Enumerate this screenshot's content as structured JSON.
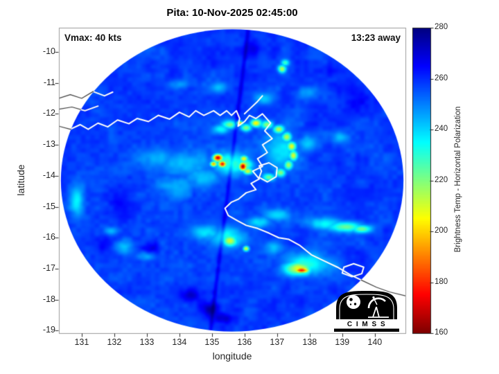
{
  "header": {
    "title": "Pita: 10-Nov-2025 02:45:00"
  },
  "annotations": {
    "vmax": "Vmax: 40 kts",
    "eta": "13:23 away"
  },
  "logo": {
    "text": "C I M S S"
  },
  "chart_data": {
    "type": "heatmap",
    "title": "Pita: 10-Nov-2025 02:45:00",
    "xlabel": "longitude",
    "ylabel": "latitude",
    "x_ticks": [
      131,
      132,
      133,
      134,
      135,
      136,
      137,
      138,
      139,
      140
    ],
    "y_ticks": [
      -10,
      -11,
      -12,
      -13,
      -14,
      -15,
      -16,
      -17,
      -18,
      -19
    ],
    "xlim": [
      130.3,
      140.94
    ],
    "ylim": [
      -19.08,
      -9.22
    ],
    "grid": false,
    "colorbar": {
      "label": "Brightness Temp - Horizontal Polarization",
      "min": 160,
      "max": 280,
      "ticks": [
        160,
        180,
        200,
        220,
        240,
        260,
        280
      ],
      "colormap": "jet_reversed"
    },
    "swath": {
      "center_lon": 135.62,
      "center_lat": -14.15,
      "radius_lon_deg": 5.26,
      "radius_lat_deg": 4.88
    },
    "background_tb": 258,
    "seam": {
      "from": [
        136.1,
        -9.4
      ],
      "to": [
        134.95,
        -19.0
      ],
      "tb_offset": 9,
      "sigma_deg": 0.06
    },
    "features": [
      [
        135.18,
        -13.42,
        168,
        0.14,
        0.11
      ],
      [
        135.32,
        -13.62,
        176,
        0.12,
        0.1
      ],
      [
        135.05,
        -13.62,
        192,
        0.1,
        0.08
      ],
      [
        135.95,
        -13.7,
        163,
        0.11,
        0.13
      ],
      [
        135.98,
        -13.45,
        205,
        0.12,
        0.1
      ],
      [
        136.1,
        -13.85,
        210,
        0.14,
        0.1
      ],
      [
        135.6,
        -13.6,
        230,
        0.55,
        0.38
      ],
      [
        136.0,
        -13.65,
        222,
        0.25,
        0.22
      ],
      [
        135.55,
        -12.35,
        222,
        0.22,
        0.13
      ],
      [
        135.85,
        -12.3,
        192,
        0.09,
        0.07
      ],
      [
        136.05,
        -12.45,
        218,
        0.16,
        0.11
      ],
      [
        135.3,
        -12.5,
        236,
        0.25,
        0.15
      ],
      [
        136.35,
        -12.3,
        205,
        0.16,
        0.12
      ],
      [
        136.7,
        -12.35,
        218,
        0.18,
        0.12
      ],
      [
        137.05,
        -12.5,
        215,
        0.16,
        0.13
      ],
      [
        137.3,
        -12.75,
        212,
        0.14,
        0.14
      ],
      [
        137.45,
        -13.05,
        208,
        0.13,
        0.15
      ],
      [
        137.5,
        -13.35,
        210,
        0.12,
        0.16
      ],
      [
        137.35,
        -13.65,
        215,
        0.13,
        0.15
      ],
      [
        137.1,
        -13.9,
        218,
        0.15,
        0.13
      ],
      [
        136.75,
        -14.05,
        222,
        0.18,
        0.12
      ],
      [
        137.1,
        -13.2,
        238,
        0.5,
        0.6
      ],
      [
        137.15,
        -10.55,
        212,
        0.12,
        0.12
      ],
      [
        137.25,
        -10.35,
        228,
        0.12,
        0.1
      ],
      [
        134.2,
        -13.6,
        243,
        0.9,
        0.35
      ],
      [
        133.3,
        -13.45,
        245,
        0.6,
        0.3
      ],
      [
        134.75,
        -14.05,
        241,
        0.45,
        0.3
      ],
      [
        133.8,
        -14.3,
        246,
        0.5,
        0.3
      ],
      [
        135.55,
        -16.1,
        212,
        0.22,
        0.18
      ],
      [
        135.5,
        -16.0,
        233,
        0.5,
        0.32
      ],
      [
        134.85,
        -15.85,
        241,
        0.5,
        0.25
      ],
      [
        136.05,
        -16.35,
        207,
        0.09,
        0.08
      ],
      [
        137.75,
        -17.05,
        176,
        0.24,
        0.09
      ],
      [
        137.65,
        -17.0,
        208,
        0.45,
        0.22
      ],
      [
        137.95,
        -16.85,
        230,
        0.7,
        0.35
      ],
      [
        139.1,
        -15.65,
        224,
        0.55,
        0.16
      ],
      [
        139.6,
        -15.72,
        218,
        0.28,
        0.13
      ],
      [
        138.45,
        -15.55,
        236,
        0.5,
        0.2
      ],
      [
        137.0,
        -15.25,
        240,
        0.4,
        0.2
      ],
      [
        136.45,
        -15.5,
        238,
        0.35,
        0.18
      ],
      [
        136.6,
        -11.5,
        243,
        0.3,
        0.2
      ],
      [
        135.2,
        -11.15,
        246,
        0.25,
        0.15
      ],
      [
        134.0,
        -11.05,
        246,
        0.3,
        0.15
      ],
      [
        137.95,
        -11.3,
        244,
        0.3,
        0.2
      ],
      [
        138.9,
        -12.75,
        241,
        0.25,
        0.2
      ],
      [
        137.95,
        -12.95,
        239,
        0.3,
        0.25
      ],
      [
        130.85,
        -14.8,
        236,
        0.22,
        0.5
      ],
      [
        132.3,
        -16.3,
        243,
        0.3,
        0.2
      ],
      [
        133.0,
        -16.6,
        245,
        0.25,
        0.15
      ],
      [
        131.9,
        -15.8,
        245,
        0.2,
        0.15
      ],
      [
        136.9,
        -16.3,
        241,
        0.3,
        0.2
      ],
      [
        134.35,
        -17.85,
        272,
        0.28,
        0.2
      ],
      [
        134.95,
        -18.3,
        274,
        0.3,
        0.2
      ],
      [
        133.15,
        -16.35,
        268,
        0.3,
        0.25
      ],
      [
        135.35,
        -18.6,
        272,
        0.3,
        0.15
      ],
      [
        132.2,
        -14.9,
        265,
        0.45,
        0.55
      ],
      [
        131.7,
        -16.2,
        265,
        0.3,
        0.3
      ],
      [
        136.3,
        -9.9,
        266,
        0.3,
        0.25
      ],
      [
        139.3,
        -11.6,
        264,
        0.4,
        0.4
      ],
      [
        138.6,
        -10.6,
        264,
        0.35,
        0.3
      ]
    ],
    "coastlines": [
      {
        "name": "mainland-top-end-gulf",
        "closed": false,
        "points": [
          [
            130.3,
            -12.4
          ],
          [
            130.65,
            -12.5
          ],
          [
            130.95,
            -12.35
          ],
          [
            131.2,
            -12.5
          ],
          [
            131.5,
            -12.3
          ],
          [
            131.8,
            -12.42
          ],
          [
            132.1,
            -12.2
          ],
          [
            132.45,
            -12.32
          ],
          [
            132.7,
            -12.15
          ],
          [
            133.05,
            -12.25
          ],
          [
            133.35,
            -12.05
          ],
          [
            133.7,
            -12.17
          ],
          [
            134.0,
            -11.95
          ],
          [
            134.3,
            -12.1
          ],
          [
            134.5,
            -11.9
          ],
          [
            134.75,
            -12.05
          ],
          [
            135.05,
            -11.9
          ],
          [
            135.25,
            -12.05
          ],
          [
            135.45,
            -11.9
          ],
          [
            135.6,
            -12.05
          ],
          [
            135.75,
            -11.9
          ],
          [
            135.85,
            -12.15
          ],
          [
            135.8,
            -12.4
          ],
          [
            136.0,
            -12.25
          ],
          [
            136.15,
            -12.05
          ],
          [
            136.35,
            -12.15
          ],
          [
            136.55,
            -12.0
          ],
          [
            136.8,
            -12.3
          ],
          [
            136.62,
            -12.55
          ],
          [
            136.85,
            -12.8
          ],
          [
            136.55,
            -13.0
          ],
          [
            136.7,
            -13.25
          ],
          [
            136.4,
            -13.45
          ],
          [
            136.55,
            -13.7
          ],
          [
            136.25,
            -13.85
          ],
          [
            136.45,
            -14.1
          ],
          [
            136.2,
            -14.25
          ],
          [
            136.35,
            -14.45
          ],
          [
            136.05,
            -14.55
          ],
          [
            135.82,
            -14.75
          ],
          [
            135.6,
            -14.85
          ],
          [
            135.4,
            -15.05
          ],
          [
            135.5,
            -15.28
          ],
          [
            135.78,
            -15.45
          ],
          [
            136.05,
            -15.6
          ],
          [
            136.4,
            -15.7
          ],
          [
            136.75,
            -15.85
          ],
          [
            137.05,
            -16.0
          ],
          [
            137.35,
            -16.05
          ],
          [
            137.7,
            -16.25
          ],
          [
            138.05,
            -16.55
          ],
          [
            138.45,
            -16.75
          ],
          [
            138.85,
            -16.95
          ],
          [
            139.25,
            -17.2
          ],
          [
            139.65,
            -17.4
          ],
          [
            140.05,
            -17.6
          ],
          [
            140.45,
            -17.75
          ],
          [
            140.95,
            -17.88
          ]
        ]
      },
      {
        "name": "tiwi-cobourg-upper",
        "closed": false,
        "points": [
          [
            130.3,
            -11.5
          ],
          [
            130.65,
            -11.38
          ],
          [
            131.0,
            -11.5
          ],
          [
            131.35,
            -11.28
          ],
          [
            131.7,
            -11.42
          ],
          [
            131.95,
            -11.3
          ]
        ]
      },
      {
        "name": "tiwi-lower",
        "closed": false,
        "points": [
          [
            130.3,
            -11.85
          ],
          [
            130.7,
            -11.78
          ],
          [
            131.1,
            -11.9
          ],
          [
            131.5,
            -11.75
          ]
        ]
      },
      {
        "name": "wessel-islands",
        "closed": false,
        "points": [
          [
            136.0,
            -12.0
          ],
          [
            136.2,
            -11.8
          ],
          [
            136.4,
            -11.6
          ],
          [
            136.55,
            -11.42
          ]
        ]
      },
      {
        "name": "groote-eylandt",
        "closed": true,
        "points": [
          [
            136.45,
            -13.68
          ],
          [
            136.75,
            -13.58
          ],
          [
            137.0,
            -13.74
          ],
          [
            136.97,
            -14.03
          ],
          [
            136.7,
            -14.2
          ],
          [
            136.45,
            -14.05
          ],
          [
            136.52,
            -13.85
          ]
        ]
      },
      {
        "name": "mornington-island",
        "closed": true,
        "points": [
          [
            139.05,
            -16.95
          ],
          [
            139.35,
            -16.84
          ],
          [
            139.66,
            -16.95
          ],
          [
            139.6,
            -17.16
          ],
          [
            139.3,
            -17.26
          ],
          [
            139.0,
            -17.14
          ]
        ]
      }
    ]
  }
}
